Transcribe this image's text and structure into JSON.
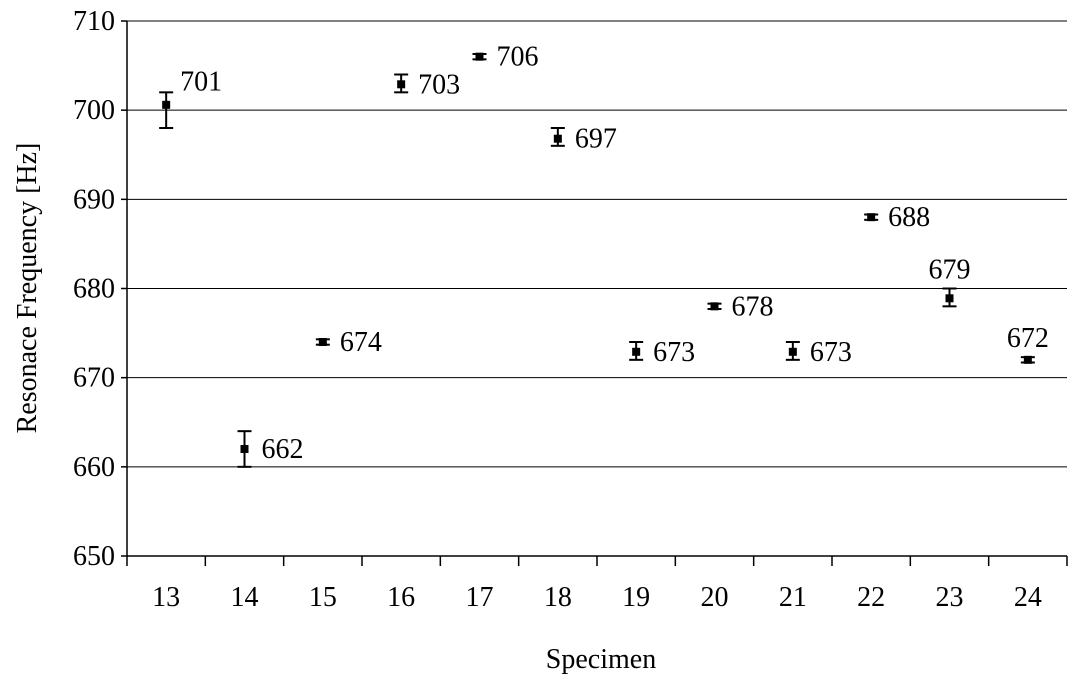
{
  "chart_data": {
    "type": "scatter",
    "xlabel": "Specimen",
    "ylabel": "Resonace Frequency [Hz]",
    "ylim": [
      650,
      710
    ],
    "y_ticks": [
      "650",
      "660",
      "670",
      "680",
      "690",
      "700",
      "710"
    ],
    "grid": "horizontal",
    "error_bars": true,
    "categories": [
      "13",
      "14",
      "15",
      "16",
      "17",
      "18",
      "19",
      "20",
      "21",
      "22",
      "23",
      "24"
    ],
    "values": [
      700.6,
      662,
      674,
      702.9,
      706,
      696.8,
      672.9,
      678,
      672.9,
      688,
      678.9,
      672
    ],
    "error_low": [
      698,
      660,
      673.7,
      702,
      705.7,
      696,
      672,
      677.7,
      672,
      687.7,
      678,
      671.7
    ],
    "error_high": [
      702,
      664,
      674.3,
      704,
      706.3,
      698,
      674,
      678.3,
      674,
      688.3,
      680,
      672.3
    ],
    "labels": [
      "701",
      "662",
      "674",
      "703",
      "706",
      "697",
      "673",
      "678",
      "673",
      "688",
      "679",
      "672"
    ]
  }
}
